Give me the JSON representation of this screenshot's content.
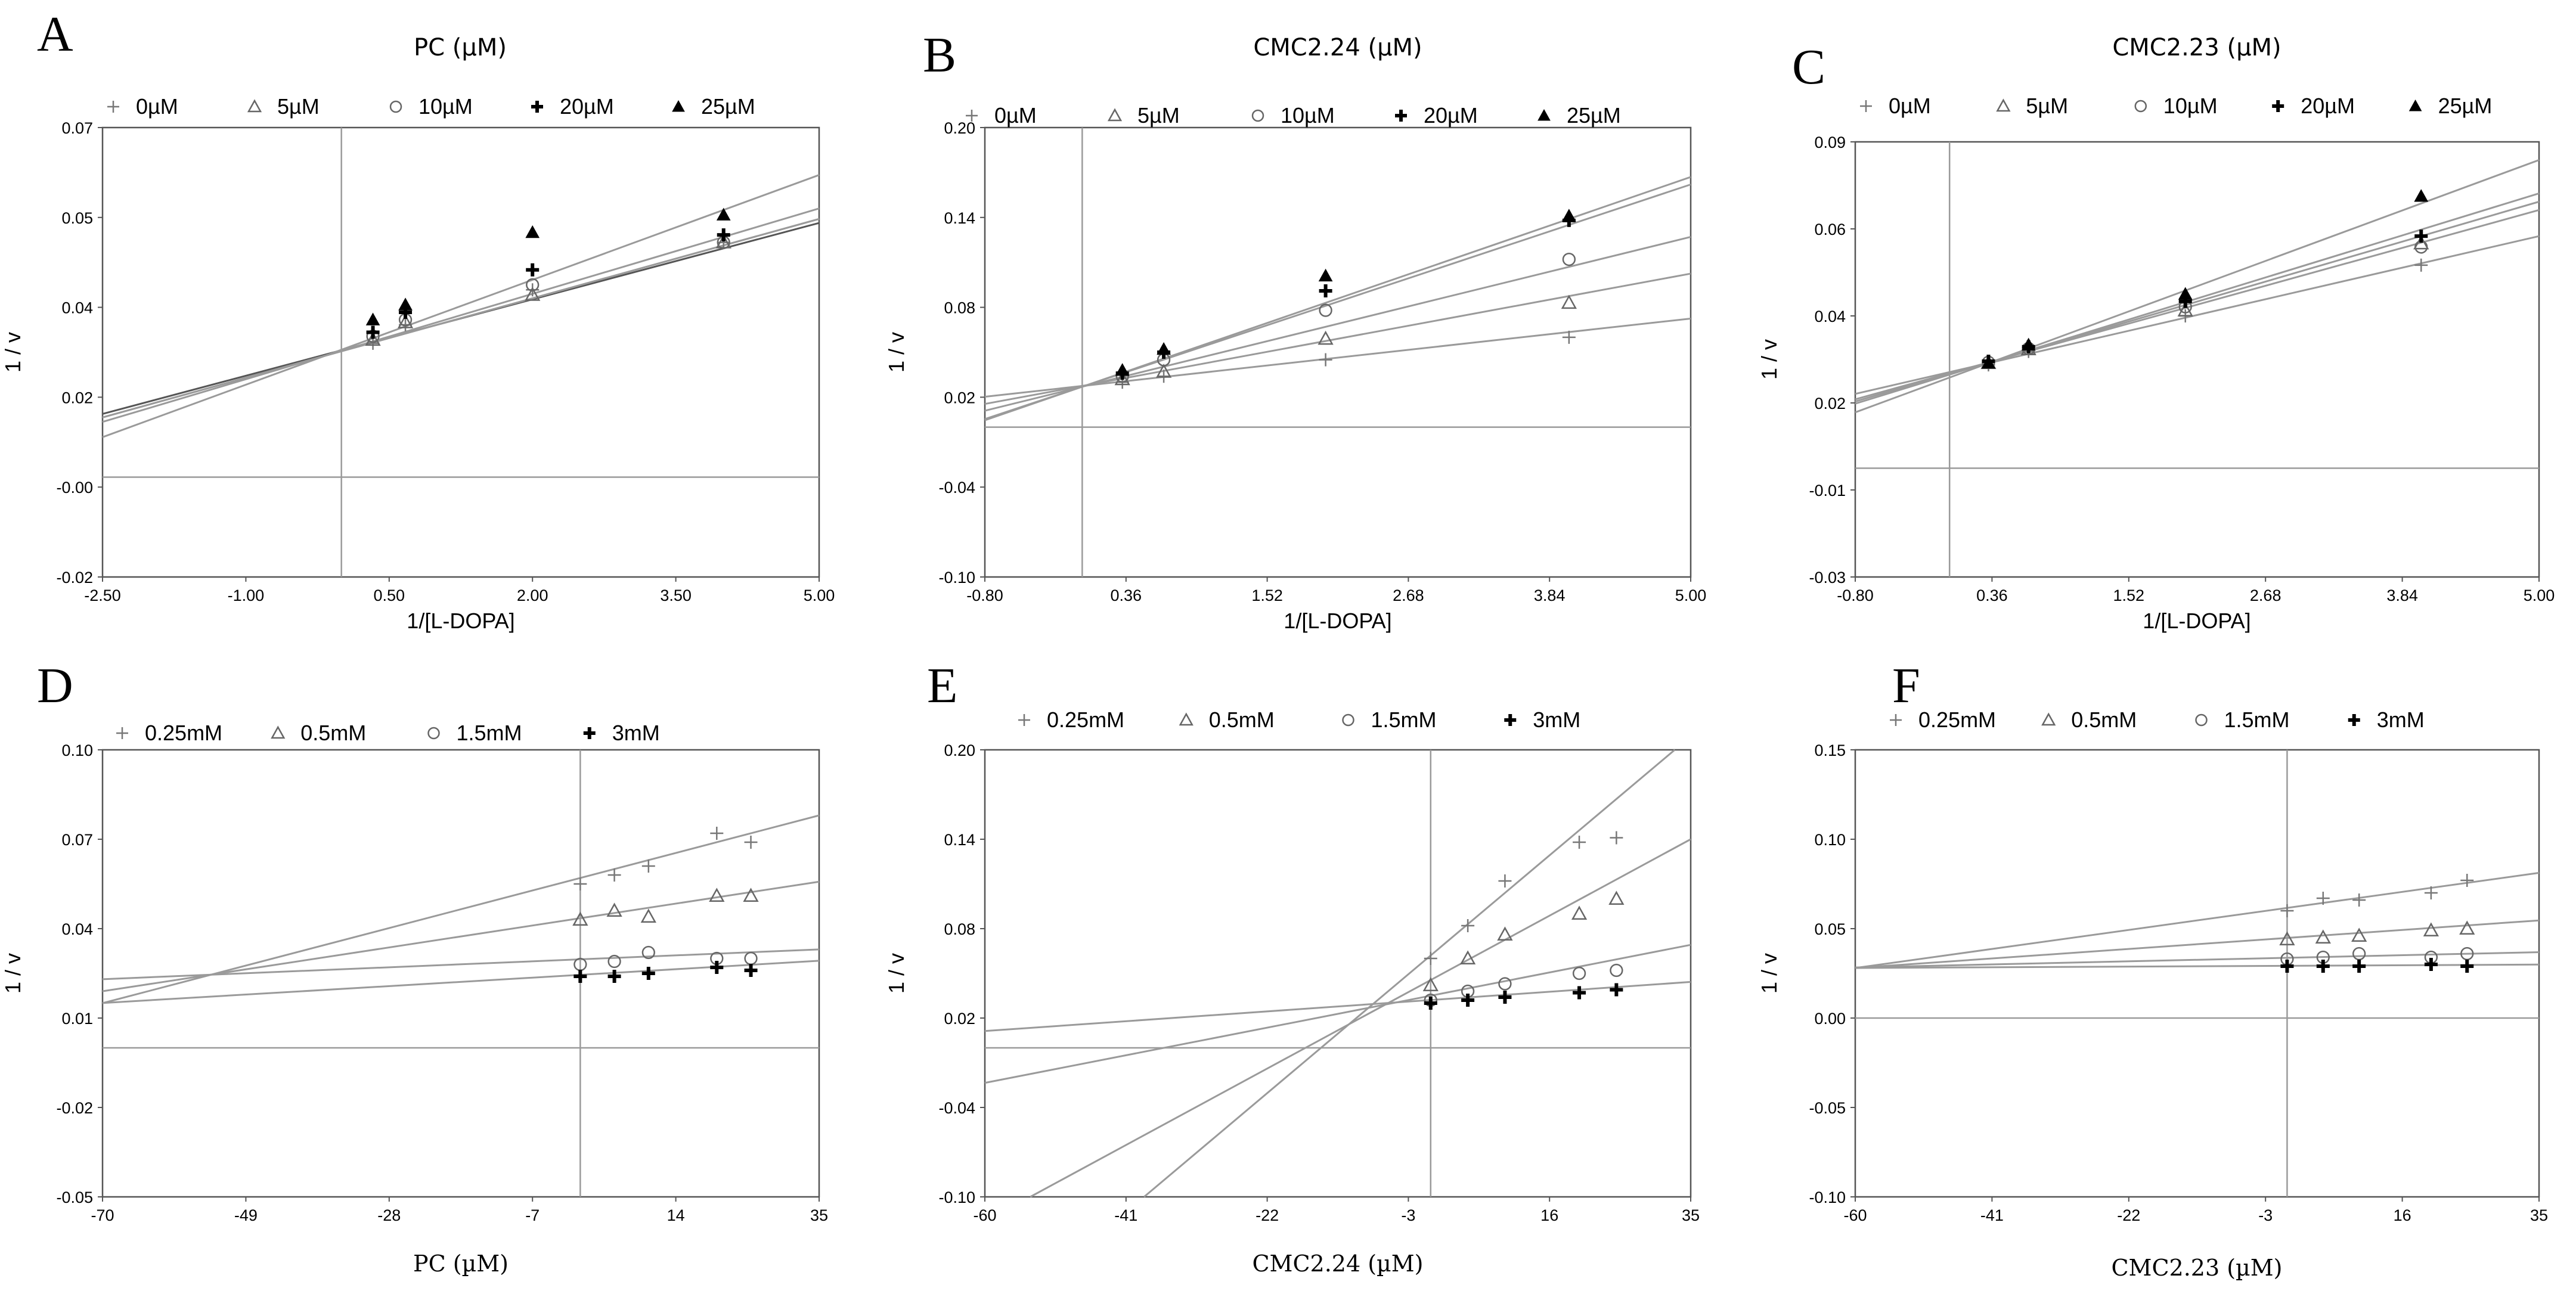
{
  "figure": {
    "background": "#ffffff",
    "line_color": "#9a9a9a",
    "frame_color": "#555555",
    "marker_color": "#000000"
  },
  "chart_data": [
    {
      "letter": "A",
      "type": "scatter",
      "title": "PC (µM)",
      "xlabel": "1/[L-DOPA]",
      "ylabel": "1 / v",
      "xlim": [
        -2.5,
        5.0
      ],
      "ylim": [
        -0.02,
        0.07
      ],
      "xticks": [
        "-2.50",
        "-1.00",
        "0.50",
        "2.00",
        "3.50",
        "5.00"
      ],
      "yticks": [
        "-0.02",
        "-0.00",
        "0.02",
        "0.04",
        "0.05",
        "0.07"
      ],
      "x": [
        0.33,
        0.67,
        2.0,
        4.0
      ],
      "series": [
        {
          "name": "0µM",
          "marker": "plus-thin",
          "values": [
            0.0268,
            0.0305,
            0.0375,
            0.047
          ],
          "line": {
            "slope": 0.0051,
            "intercept": 0.0254
          }
        },
        {
          "name": "5µM",
          "marker": "triangle-open",
          "values": [
            0.0275,
            0.031,
            0.0365,
            0.047
          ],
          "line": {
            "slope": 0.0053,
            "intercept": 0.0252
          }
        },
        {
          "name": "10µM",
          "marker": "circle-open",
          "values": [
            0.0282,
            0.0315,
            0.0385,
            0.047
          ],
          "line": {
            "slope": 0.0053,
            "intercept": 0.0252
          }
        },
        {
          "name": "20µM",
          "marker": "plus-bold",
          "values": [
            0.029,
            0.033,
            0.0415,
            0.0485
          ],
          "line": {
            "slope": 0.0057,
            "intercept": 0.0253
          }
        },
        {
          "name": "25µM",
          "marker": "triangle-filled",
          "values": [
            0.0315,
            0.0345,
            0.049,
            0.0525
          ],
          "line": {
            "slope": 0.007,
            "intercept": 0.0255
          }
        }
      ]
    },
    {
      "letter": "B",
      "type": "scatter",
      "title": "CMC2.24 (µM)",
      "xlabel": "1/[L-DOPA]",
      "ylabel": "1 / v",
      "xlim": [
        -0.8,
        5.0
      ],
      "ylim": [
        -0.1,
        0.2
      ],
      "xticks": [
        "-0.80",
        "0.36",
        "1.52",
        "2.68",
        "3.84",
        "5.00"
      ],
      "yticks": [
        "-0.10",
        "-0.04",
        "0.02",
        "0.08",
        "0.14",
        "0.20"
      ],
      "x": [
        0.33,
        0.67,
        2.0,
        4.0
      ],
      "series": [
        {
          "name": "0µM",
          "marker": "plus-thin",
          "values": [
            0.03,
            0.034,
            0.045,
            0.06
          ],
          "line": {
            "slope": 0.009,
            "intercept": 0.0275
          }
        },
        {
          "name": "5µM",
          "marker": "triangle-open",
          "values": [
            0.032,
            0.037,
            0.059,
            0.083
          ],
          "line": {
            "slope": 0.015,
            "intercept": 0.0275
          }
        },
        {
          "name": "10µM",
          "marker": "circle-open",
          "values": [
            0.034,
            0.045,
            0.078,
            0.112
          ],
          "line": {
            "slope": 0.02,
            "intercept": 0.027
          }
        },
        {
          "name": "20µM",
          "marker": "plus-bold",
          "values": [
            0.036,
            0.05,
            0.091,
            0.138
          ],
          "line": {
            "slope": 0.027,
            "intercept": 0.027
          }
        },
        {
          "name": "25µM",
          "marker": "triangle-filled",
          "values": [
            0.038,
            0.052,
            0.101,
            0.141
          ],
          "line": {
            "slope": 0.028,
            "intercept": 0.027
          }
        }
      ]
    },
    {
      "letter": "C",
      "type": "scatter",
      "title": "CMC2.23 (µM)",
      "xlabel": "1/[L-DOPA]",
      "ylabel": "1  /  v",
      "xlim": [
        -0.8,
        5.0
      ],
      "ylim": [
        -0.03,
        0.09
      ],
      "xticks": [
        "-0.80",
        "0.36",
        "1.52",
        "2.68",
        "3.84",
        "5.00"
      ],
      "yticks": [
        "-0.03",
        "-0.01",
        "0.02",
        "0.04",
        "0.06",
        "0.09"
      ],
      "x": [
        0.33,
        0.67,
        2.0,
        4.0
      ],
      "series": [
        {
          "name": "0µM",
          "marker": "plus-thin",
          "values": [
            0.0285,
            0.0322,
            0.042,
            0.056
          ],
          "line": {
            "slope": 0.0075,
            "intercept": 0.0265
          }
        },
        {
          "name": "5µM",
          "marker": "triangle-open",
          "values": [
            0.029,
            0.0328,
            0.0435,
            0.062
          ],
          "line": {
            "slope": 0.009,
            "intercept": 0.0262
          }
        },
        {
          "name": "10µM",
          "marker": "circle-open",
          "values": [
            0.0292,
            0.033,
            0.0445,
            0.061
          ],
          "line": {
            "slope": 0.0095,
            "intercept": 0.026
          }
        },
        {
          "name": "20µM",
          "marker": "plus-bold",
          "values": [
            0.0295,
            0.0335,
            0.046,
            0.064
          ],
          "line": {
            "slope": 0.01,
            "intercept": 0.0258
          }
        },
        {
          "name": "25µM",
          "marker": "triangle-filled",
          "values": [
            0.029,
            0.034,
            0.048,
            0.075
          ],
          "line": {
            "slope": 0.012,
            "intercept": 0.025
          }
        }
      ]
    },
    {
      "letter": "D",
      "type": "scatter",
      "title": "",
      "xlabel": "PC (µM)",
      "ylabel": "1 / v",
      "xlim": [
        -70,
        35
      ],
      "ylim": [
        -0.05,
        0.1
      ],
      "xticks": [
        "-70",
        "-49",
        "-28",
        "-7",
        "14",
        "35"
      ],
      "yticks": [
        "-0.05",
        "-0.02",
        "0.01",
        "0.04",
        "0.07",
        "0.10"
      ],
      "x": [
        0,
        5,
        10,
        20,
        25
      ],
      "series": [
        {
          "name": "0.25mM",
          "marker": "plus-thin",
          "values": [
            0.055,
            0.058,
            0.061,
            0.072,
            0.069
          ],
          "line": {
            "slope": 0.0006,
            "intercept": 0.057
          }
        },
        {
          "name": "0.5mM",
          "marker": "triangle-open",
          "values": [
            0.043,
            0.046,
            0.044,
            0.051,
            0.051
          ],
          "line": {
            "slope": 0.00035,
            "intercept": 0.0435
          }
        },
        {
          "name": "1.5mM",
          "marker": "circle-open",
          "values": [
            0.028,
            0.029,
            0.032,
            0.03,
            0.03
          ],
          "line": {
            "slope": 9.52e-05,
            "intercept": 0.0297
          }
        },
        {
          "name": "3mM",
          "marker": "plus-bold",
          "values": [
            0.024,
            0.024,
            0.025,
            0.027,
            0.026
          ],
          "line": {
            "slope": 0.000135,
            "intercept": 0.0245
          }
        }
      ]
    },
    {
      "letter": "E",
      "type": "scatter",
      "title": "",
      "xlabel": "CMC2.24 (µM)",
      "ylabel": "1 / v",
      "xlim": [
        -60,
        35
      ],
      "ylim": [
        -0.1,
        0.2
      ],
      "xticks": [
        "-60",
        "-41",
        "-22",
        "-3",
        "16",
        "35"
      ],
      "yticks": [
        "-0.10",
        "-0.04",
        "0.02",
        "0.08",
        "0.14",
        "0.20"
      ],
      "x": [
        0,
        5,
        10,
        20,
        25
      ],
      "series": [
        {
          "name": "0.25mM",
          "marker": "plus-thin",
          "values": [
            0.06,
            0.082,
            0.112,
            0.138,
            0.141
          ],
          "line": {
            "slope": 0.0042,
            "intercept": 0.062
          }
        },
        {
          "name": "0.5mM",
          "marker": "triangle-open",
          "values": [
            0.042,
            0.06,
            0.076,
            0.09,
            0.1
          ],
          "line": {
            "slope": 0.0027,
            "intercept": 0.0455
          }
        },
        {
          "name": "1.5mM",
          "marker": "circle-open",
          "values": [
            0.032,
            0.038,
            0.043,
            0.05,
            0.052
          ],
          "line": {
            "slope": 0.000975,
            "intercept": 0.035
          }
        },
        {
          "name": "3mM",
          "marker": "plus-bold",
          "values": [
            0.03,
            0.032,
            0.034,
            0.037,
            0.039
          ],
          "line": {
            "slope": 0.000347,
            "intercept": 0.0321
          }
        }
      ]
    },
    {
      "letter": "F",
      "type": "scatter",
      "title": "",
      "xlabel": "CMC2.23 (µM)",
      "ylabel": "1 / v",
      "xlim": [
        -60,
        35
      ],
      "ylim": [
        -0.1,
        0.15
      ],
      "xticks": [
        "-60",
        "-41",
        "-22",
        "-3",
        "16",
        "35"
      ],
      "yticks": [
        "-0.10",
        "-0.05",
        "0.00",
        "0.05",
        "0.10",
        "0.15"
      ],
      "x": [
        0,
        5,
        10,
        20,
        25
      ],
      "series": [
        {
          "name": "0.25mM",
          "marker": "plus-thin",
          "values": [
            0.06,
            0.067,
            0.066,
            0.07,
            0.077
          ],
          "line": {
            "slope": 0.00056,
            "intercept": 0.0616
          }
        },
        {
          "name": "0.5mM",
          "marker": "triangle-open",
          "values": [
            0.044,
            0.045,
            0.046,
            0.049,
            0.05
          ],
          "line": {
            "slope": 0.00028,
            "intercept": 0.0448
          }
        },
        {
          "name": "1.5mM",
          "marker": "circle-open",
          "values": [
            0.033,
            0.034,
            0.036,
            0.034,
            0.036
          ],
          "line": {
            "slope": 9e-05,
            "intercept": 0.0337
          }
        },
        {
          "name": "3mM",
          "marker": "plus-bold",
          "values": [
            0.029,
            0.029,
            0.029,
            0.03,
            0.029
          ],
          "line": {
            "slope": 2e-05,
            "intercept": 0.0292
          }
        }
      ]
    }
  ]
}
